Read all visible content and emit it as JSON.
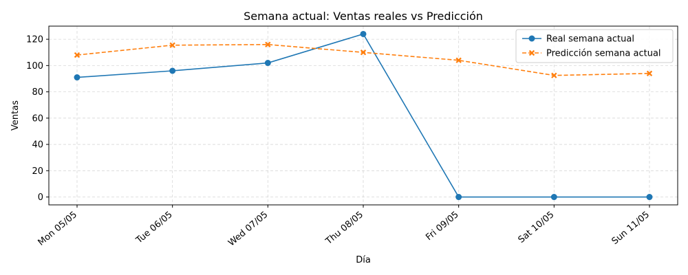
{
  "chart_data": {
    "type": "line",
    "title": "Semana actual: Ventas reales vs Predicción",
    "xlabel": "Día",
    "ylabel": "Ventas",
    "categories": [
      "Mon 05/05",
      "Tue 06/05",
      "Wed 07/05",
      "Thu 08/05",
      "Fri 09/05",
      "Sat 10/05",
      "Sun 11/05"
    ],
    "ylim": [
      -6,
      130
    ],
    "yticks": [
      0,
      20,
      40,
      60,
      80,
      100,
      120
    ],
    "grid": true,
    "legend_position": "top-right",
    "series": [
      {
        "name": "Real semana actual",
        "values": [
          91,
          96,
          102,
          124,
          0,
          0,
          0
        ],
        "color": "#1f77b4",
        "style": "solid",
        "marker": "circle"
      },
      {
        "name": "Predicción semana actual",
        "values": [
          108,
          115.5,
          116,
          110,
          104,
          92.5,
          94
        ],
        "color": "#ff7f0e",
        "style": "dashed",
        "marker": "x"
      }
    ]
  }
}
